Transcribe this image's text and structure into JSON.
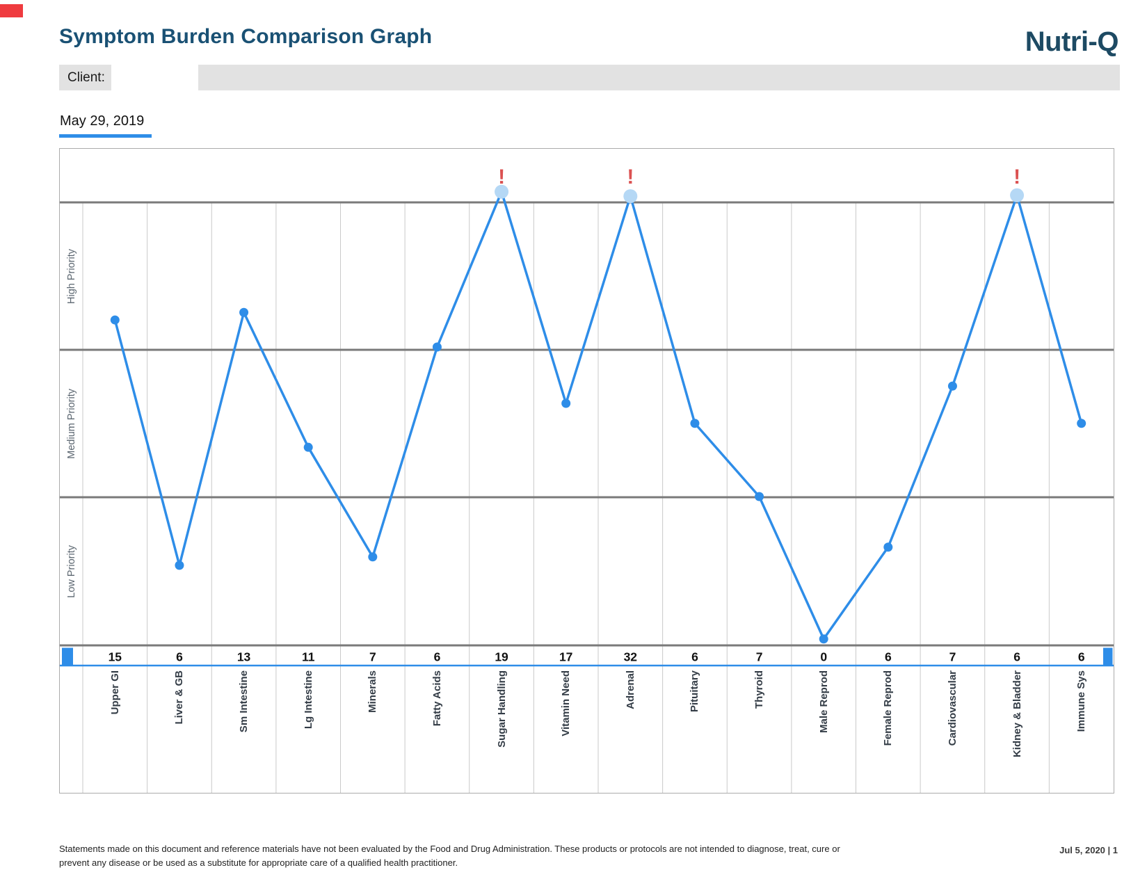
{
  "page": {
    "title": "Symptom Burden Comparison Graph",
    "brand": "Nutri-Q",
    "client_label": "Client:",
    "date_label": "May 29, 2019",
    "page_info": "Jul 5, 2020 | 1"
  },
  "footer": {
    "lines": [
      "Statements made on this document and reference materials have not been evaluated by the Food and Drug Administration. These products or protocols are not intended to diagnose, treat, cure or",
      "prevent any disease or be used as a substitute for appropriate care of a qualified health practitioner."
    ]
  },
  "colors": {
    "accent_blue": "#2e8de8",
    "highlight_dot": "#b5d8f5",
    "alert_red": "#db5151",
    "title_navy": "#1a5174",
    "logo_navy": "#1d4a63",
    "client_bar_gray": "#e2e2e2",
    "grid_dark": "#7a7a7a",
    "grid_light": "#c9c9c9",
    "red_mark": "#ef3b3f",
    "number_text": "#111111"
  },
  "chart_data": {
    "type": "line",
    "title": "May 29, 2019",
    "band_labels": [
      "High Priority",
      "Medium Priority",
      "Low Priority"
    ],
    "categories": [
      "Upper GI",
      "Liver & GB",
      "Sm Intestine",
      "Lg Intestine",
      "Minerals",
      "Fatty Acids",
      "Sugar Handling",
      "Vitamin Need",
      "Adrenal",
      "Pituitary",
      "Thyroid",
      "Male Reprod",
      "Female Reprod",
      "Cardiovascular",
      "Kidney & Bladder",
      "Immune Sys"
    ],
    "values": [
      15,
      6,
      13,
      11,
      7,
      6,
      19,
      17,
      32,
      6,
      7,
      0,
      6,
      7,
      6,
      6
    ],
    "alert_indices": [
      6,
      8,
      14
    ],
    "alert_symbol": "!",
    "severity_frac": [
      0.265,
      0.818,
      0.248,
      0.552,
      0.799,
      0.326,
      -0.024,
      0.453,
      -0.014,
      0.498,
      0.663,
      0.984,
      0.777,
      0.414,
      -0.016,
      0.498
    ],
    "legend_position": "none",
    "grid": "vertical-light, horizontal-dark-band-lines"
  }
}
